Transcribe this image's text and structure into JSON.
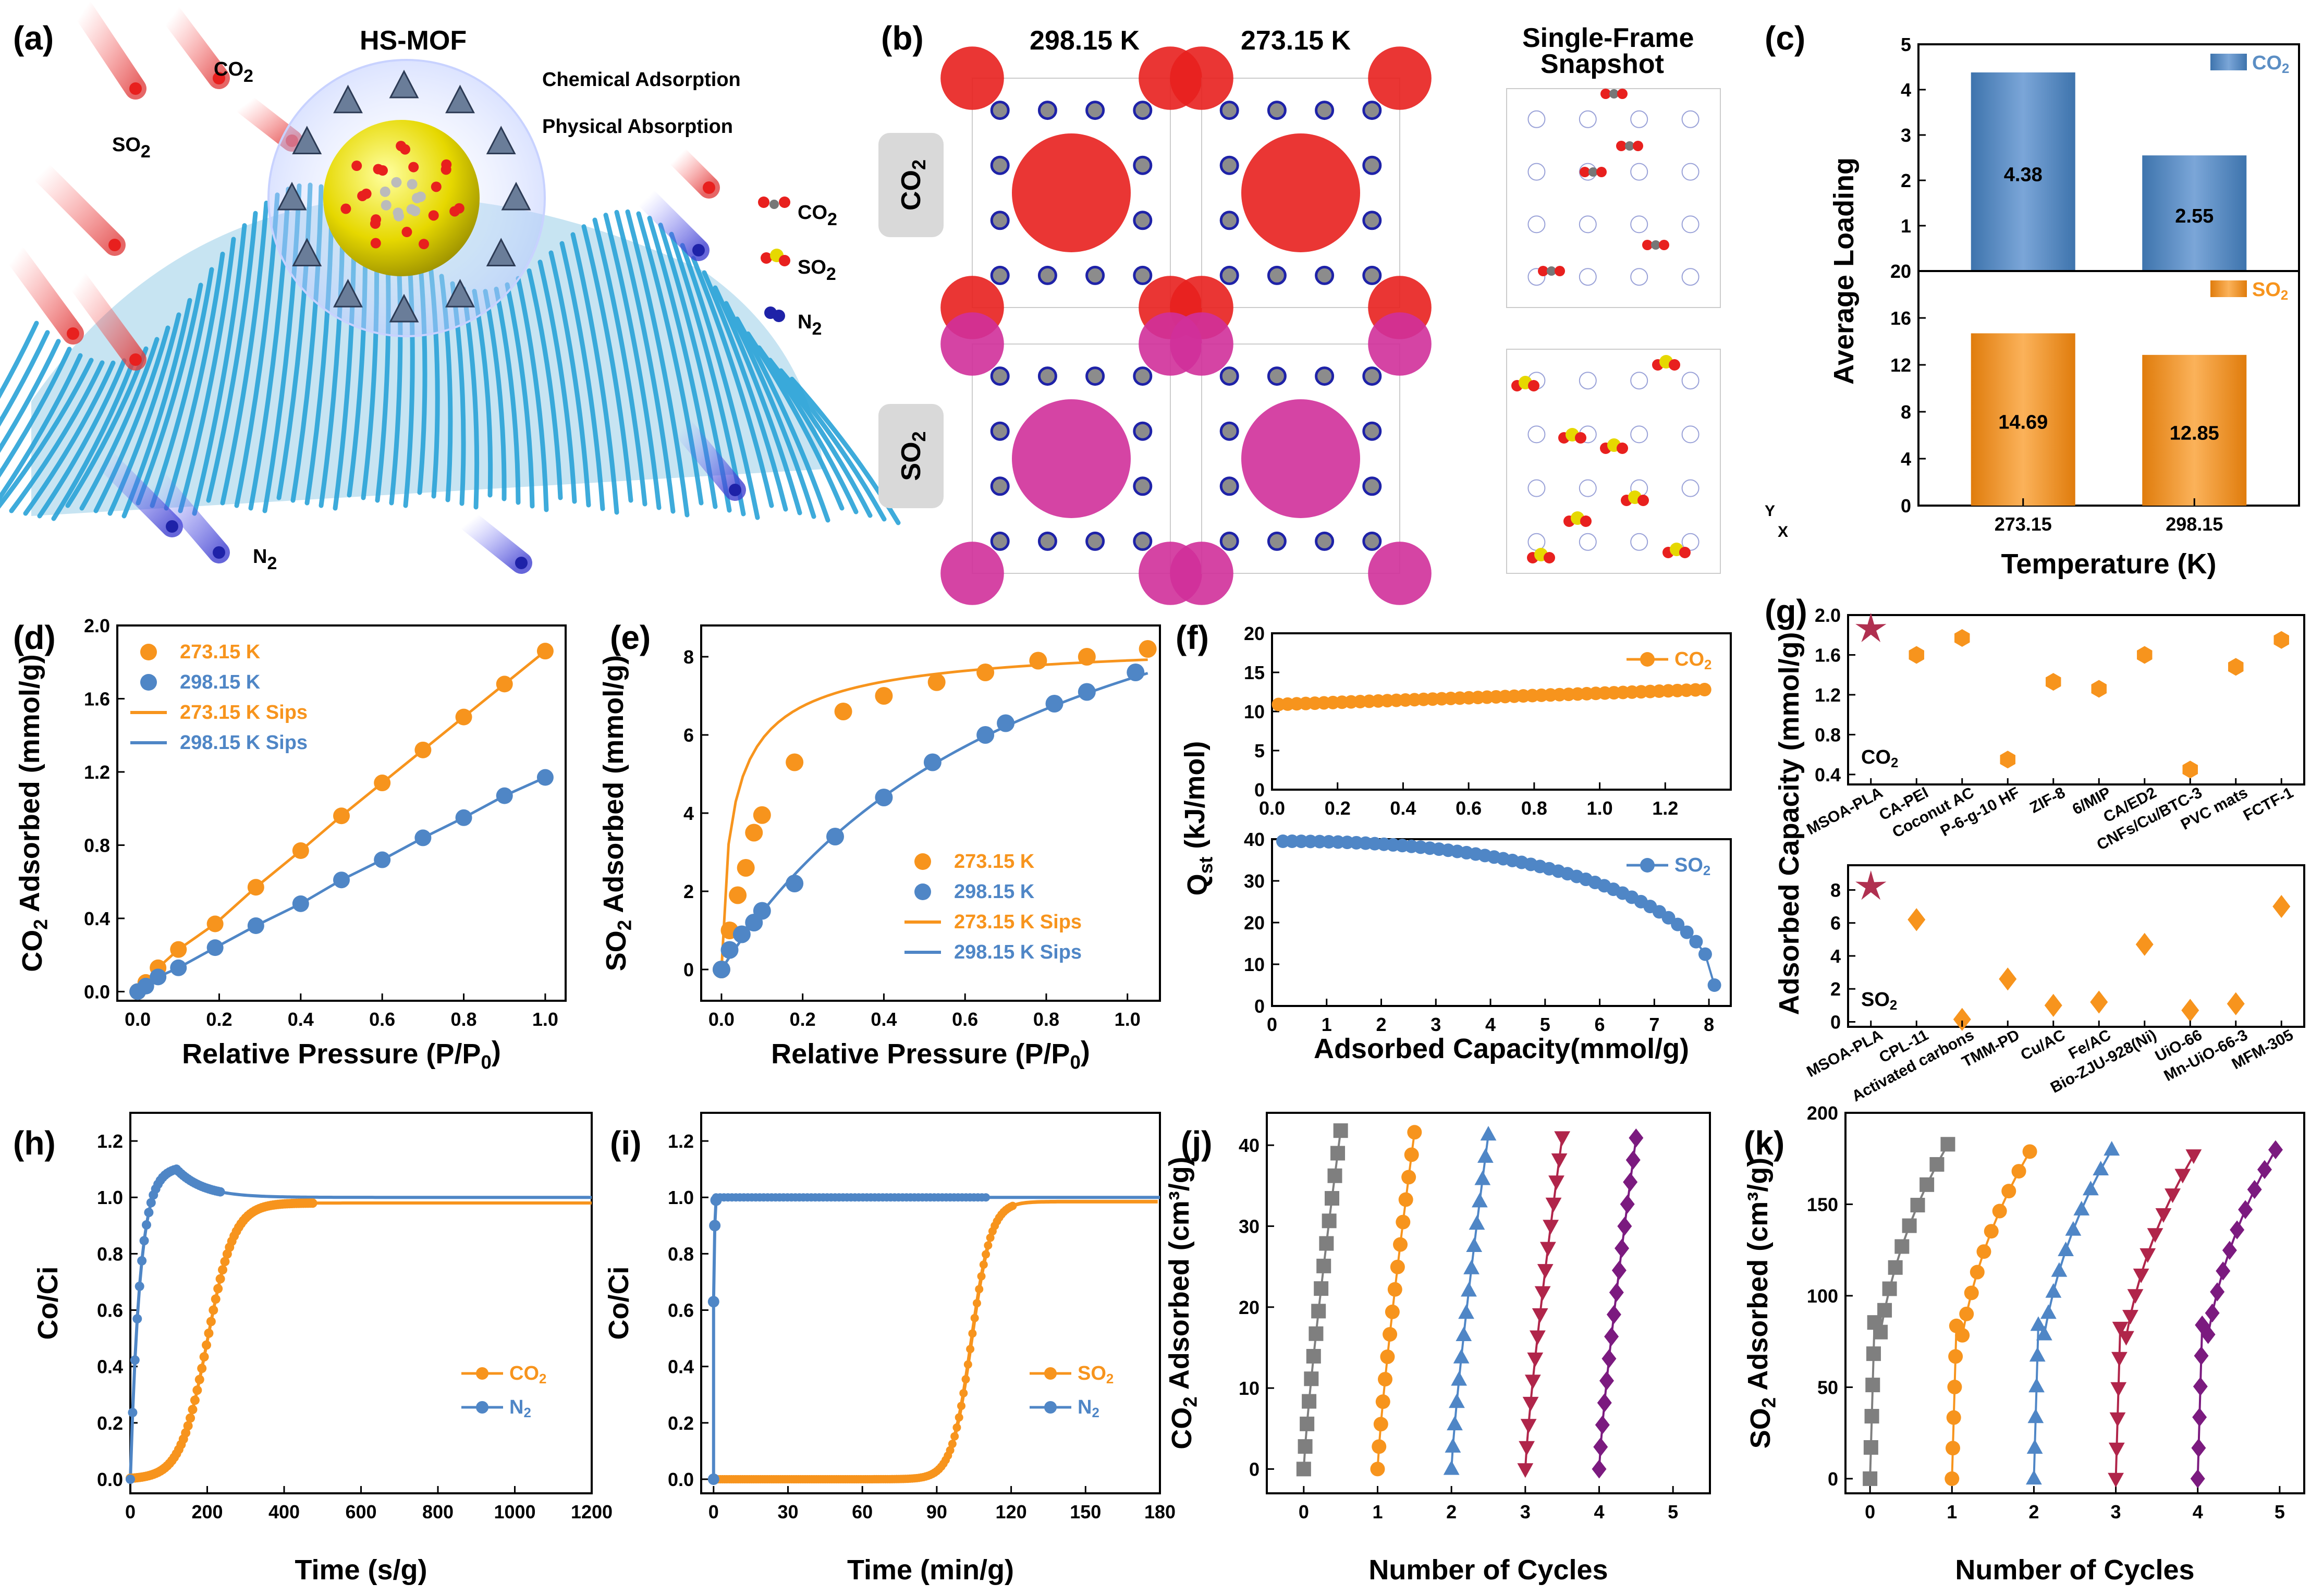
{
  "panel_labels": [
    "(a)",
    "(b)",
    "(c)",
    "(d)",
    "(e)",
    "(f)",
    "(g)",
    "(h)",
    "(i)",
    "(j)",
    "(k)"
  ],
  "colors": {
    "orange": "#f7941d",
    "blue": "#4f86c6",
    "barblue": "#5b8ec4",
    "red": "#e8201e",
    "magenta": "#d0309a",
    "gray": "#7f7f7f",
    "crimson": "#b0254a",
    "purple": "#7b1a7f",
    "star": "#b03050",
    "teal": "#2aa3d8"
  },
  "panel_a": {
    "title": "HS-MOF",
    "line1": "Chemical Adsorption",
    "line2": "Physical Absorption",
    "gas_labels": [
      "CO",
      "SO",
      "N"
    ],
    "gas_subs": [
      "2",
      "2",
      "2"
    ],
    "legend": [
      {
        "text": "CO",
        "sub": "2"
      },
      {
        "text": "SO",
        "sub": "2"
      },
      {
        "text": "N",
        "sub": "2"
      }
    ]
  },
  "panel_b": {
    "col_titles": [
      "298.15 K",
      "273.15 K",
      "Single-Frame"
    ],
    "col_title_line2": "Snapshot",
    "row_labels": [
      {
        "text": "CO",
        "sub": "2"
      },
      {
        "text": "SO",
        "sub": "2"
      }
    ],
    "axis_mini": [
      "Y",
      "X"
    ]
  },
  "chart_data": [
    {
      "id": "c",
      "type": "bar",
      "xlabel": "Temperature (K)",
      "ylabel": "Average Loading",
      "categories": [
        "273.15",
        "298.15"
      ],
      "series": [
        {
          "name": "CO",
          "sub": "2",
          "values": [
            4.38,
            2.55
          ],
          "ylim": [
            0,
            5
          ],
          "ticks": [
            0,
            1,
            2,
            3,
            4,
            5
          ],
          "labels": [
            "4.38",
            "2.55"
          ]
        },
        {
          "name": "SO",
          "sub": "2",
          "values": [
            14.69,
            12.85
          ],
          "ylim": [
            0,
            20
          ],
          "ticks": [
            0,
            4,
            8,
            12,
            16,
            20
          ],
          "labels": [
            "14.69",
            "12.85"
          ]
        }
      ]
    },
    {
      "id": "d",
      "type": "line",
      "xlabel": "Relative Pressure (P/P",
      "xlabel_sub": "0",
      "xlabel_end": ")",
      "ylabel": "CO",
      "ylabel_sub": "2",
      "ylabel_end": " Adsorbed (mmol/g)",
      "xlim": [
        0,
        1.05
      ],
      "ylim": [
        0,
        2.0
      ],
      "xticks": [
        0.0,
        0.2,
        0.4,
        0.6,
        0.8,
        1.0
      ],
      "xtick_labels": [
        "0.0",
        "0.2",
        "0.4",
        "0.6",
        "0.8",
        "1.0"
      ],
      "yticks": [
        0.0,
        0.4,
        0.8,
        1.2,
        1.6,
        2.0
      ],
      "ytick_labels": [
        "0.0",
        "0.4",
        "0.8",
        "1.2",
        "1.6",
        "2.0"
      ],
      "legend": [
        "273.15 K",
        "298.15 K",
        "273.15 K Sips",
        "298.15 K Sips"
      ],
      "series": [
        {
          "name": "273.15 K",
          "x": [
            0.0,
            0.02,
            0.05,
            0.1,
            0.19,
            0.29,
            0.4,
            0.5,
            0.6,
            0.7,
            0.8,
            0.9,
            1.0
          ],
          "y": [
            0.0,
            0.05,
            0.13,
            0.23,
            0.37,
            0.57,
            0.77,
            0.96,
            1.14,
            1.32,
            1.5,
            1.68,
            1.86
          ]
        },
        {
          "name": "298.15 K",
          "x": [
            0.0,
            0.02,
            0.05,
            0.1,
            0.19,
            0.29,
            0.4,
            0.5,
            0.6,
            0.7,
            0.8,
            0.9,
            1.0
          ],
          "y": [
            0.0,
            0.03,
            0.08,
            0.13,
            0.24,
            0.36,
            0.48,
            0.61,
            0.72,
            0.84,
            0.95,
            1.07,
            1.17
          ]
        }
      ]
    },
    {
      "id": "e",
      "type": "line",
      "xlabel": "Relative Pressure (P/P",
      "xlabel_sub": "0",
      "xlabel_end": ")",
      "ylabel": "SO",
      "ylabel_sub": "2",
      "ylabel_end": " Adsorbed (mmol/g)",
      "xlim": [
        -0.05,
        1.08
      ],
      "ylim": [
        -0.8,
        8.8
      ],
      "xticks": [
        0.0,
        0.2,
        0.4,
        0.6,
        0.8,
        1.0
      ],
      "xtick_labels": [
        "0.0",
        "0.2",
        "0.4",
        "0.6",
        "0.8",
        "1.0"
      ],
      "yticks": [
        0,
        2,
        4,
        6,
        8
      ],
      "ytick_labels": [
        "0",
        "2",
        "4",
        "6",
        "8"
      ],
      "legend": [
        "273.15 K",
        "298.15 K",
        "273.15 K Sips",
        "298.15 K Sips"
      ],
      "series": [
        {
          "name": "273.15 K",
          "x": [
            0.0,
            0.02,
            0.04,
            0.06,
            0.08,
            0.1,
            0.18,
            0.3,
            0.4,
            0.53,
            0.65,
            0.78,
            0.9,
            1.05
          ],
          "y": [
            0.0,
            1.0,
            1.9,
            2.6,
            3.5,
            3.95,
            5.3,
            6.6,
            7.0,
            7.35,
            7.6,
            7.9,
            8.0,
            8.2
          ]
        },
        {
          "name": "298.15 K",
          "x": [
            0.0,
            0.02,
            0.05,
            0.08,
            0.1,
            0.18,
            0.28,
            0.4,
            0.52,
            0.65,
            0.7,
            0.82,
            0.9,
            1.02
          ],
          "y": [
            0.0,
            0.5,
            0.9,
            1.2,
            1.5,
            2.2,
            3.4,
            4.4,
            5.3,
            6.0,
            6.3,
            6.8,
            7.1,
            7.6
          ]
        }
      ]
    },
    {
      "id": "f",
      "type": "line",
      "xlabel": "Adsorbed Capacity(mmol/g)",
      "ylabel": "Q",
      "ylabel_sub": "st",
      "ylabel_end": " (kJ/mol)",
      "top": {
        "legend": "CO",
        "legend_sub": "2",
        "xlim": [
          0,
          1.4
        ],
        "ylim": [
          0,
          20
        ],
        "xticks": [
          0.0,
          0.2,
          0.4,
          0.6,
          0.8,
          1.0,
          1.2
        ],
        "xtick_labels": [
          "0.0",
          "0.2",
          "0.4",
          "0.6",
          "0.8",
          "1.0",
          "1.2"
        ],
        "yticks": [
          0,
          5,
          10,
          15,
          20
        ],
        "ytick_labels": [
          "0",
          "5",
          "10",
          "15",
          "20"
        ],
        "x_start": 0.02,
        "x_end": 1.32,
        "y_start": 10.9,
        "y_end": 12.8
      },
      "bottom": {
        "legend": "SO",
        "legend_sub": "2",
        "xlim": [
          0,
          8.4
        ],
        "ylim": [
          0,
          40
        ],
        "xticks": [
          0,
          1,
          2,
          3,
          4,
          5,
          6,
          7,
          8
        ],
        "xtick_labels": [
          "0",
          "1",
          "2",
          "3",
          "4",
          "5",
          "6",
          "7",
          "8"
        ],
        "yticks": [
          0,
          10,
          20,
          30,
          40
        ],
        "ytick_labels": [
          "0",
          "10",
          "20",
          "30",
          "40"
        ],
        "x_start": 0.2,
        "x_end": 8.1,
        "y_start": 39.5,
        "y_end": 5.0
      }
    },
    {
      "id": "g",
      "type": "scatter",
      "ylabel": "Adsorbed Capacity (mmol/g)",
      "top": {
        "label": "CO",
        "label_sub": "2",
        "ylim": [
          0.3,
          2.0
        ],
        "yticks": [
          0.4,
          0.8,
          1.2,
          1.6,
          2.0
        ],
        "ytick_labels": [
          "0.4",
          "0.8",
          "1.2",
          "1.6",
          "2.0"
        ],
        "categories": [
          "MSOA-PLA",
          "CA-PEI",
          "Coconut AC",
          "P-6-g-10 HF",
          "ZIF-8",
          "6/MIP",
          "CA/ED2",
          "CNFs/Cu/BTC-3",
          "PVC mats",
          "FCTF-1"
        ],
        "values": [
          1.86,
          1.6,
          1.77,
          0.55,
          1.33,
          1.26,
          1.6,
          0.45,
          1.48,
          1.75
        ]
      },
      "bottom": {
        "label": "SO",
        "label_sub": "2",
        "ylim": [
          -0.3,
          9.5
        ],
        "yticks": [
          0,
          2,
          4,
          6,
          8
        ],
        "ytick_labels": [
          "0",
          "2",
          "4",
          "6",
          "8"
        ],
        "categories": [
          "MSOA-PLA",
          "CPL-11",
          "Activated carbons",
          "TMM-PD",
          "Cu/AC",
          "Fe/AC",
          "Bio-ZJU-928(Ni)",
          "UiO-66",
          "Mn-UiO-66-3",
          "MFM-305"
        ],
        "values": [
          8.2,
          6.2,
          0.15,
          2.6,
          1.0,
          1.2,
          4.7,
          0.7,
          1.1,
          7.0
        ]
      }
    },
    {
      "id": "h",
      "type": "line",
      "xlabel": "Time (s/g)",
      "ylabel": "Co/Ci",
      "xlim": [
        0,
        1200
      ],
      "ylim": [
        -0.05,
        1.3
      ],
      "xticks": [
        0,
        200,
        400,
        600,
        800,
        1000,
        1200
      ],
      "xtick_labels": [
        "0",
        "200",
        "400",
        "600",
        "800",
        "1000",
        "1200"
      ],
      "yticks": [
        0.0,
        0.2,
        0.4,
        0.6,
        0.8,
        1.0,
        1.2
      ],
      "ytick_labels": [
        "0.0",
        "0.2",
        "0.4",
        "0.6",
        "0.8",
        "1.0",
        "1.2"
      ],
      "legend": [
        {
          "text": "CO",
          "sub": "2"
        },
        {
          "text": "N",
          "sub": "2"
        }
      ]
    },
    {
      "id": "i",
      "type": "line",
      "xlabel": "Time (min/g)",
      "ylabel": "Co/Ci",
      "xlim": [
        -5,
        180
      ],
      "ylim": [
        -0.05,
        1.3
      ],
      "xticks": [
        0,
        30,
        60,
        90,
        120,
        150,
        180
      ],
      "xtick_labels": [
        "0",
        "30",
        "60",
        "90",
        "120",
        "150",
        "180"
      ],
      "yticks": [
        0.0,
        0.2,
        0.4,
        0.6,
        0.8,
        1.0,
        1.2
      ],
      "ytick_labels": [
        "0.0",
        "0.2",
        "0.4",
        "0.6",
        "0.8",
        "1.0",
        "1.2"
      ],
      "legend": [
        {
          "text": "SO",
          "sub": "2"
        },
        {
          "text": "N",
          "sub": "2"
        }
      ]
    },
    {
      "id": "j",
      "type": "line",
      "xlabel": "Number of Cycles",
      "ylabel": "CO",
      "ylabel_sub": "2",
      "ylabel_end": " Adsorbed (cm³/g)",
      "xlim": [
        -0.5,
        5.5
      ],
      "ylim": [
        -3,
        44
      ],
      "xticks": [
        0,
        1,
        2,
        3,
        4,
        5
      ],
      "xtick_labels": [
        "0",
        "1",
        "2",
        "3",
        "4",
        "5"
      ],
      "yticks": [
        0,
        10,
        20,
        30,
        40
      ],
      "ytick_labels": [
        "0",
        "10",
        "20",
        "30",
        "40"
      ],
      "cycle_top": [
        41.8,
        41.6,
        41.3,
        41.0,
        40.9
      ],
      "cycle_width": 0.5
    },
    {
      "id": "k",
      "type": "line",
      "xlabel": "Number of Cycles",
      "ylabel": "SO",
      "ylabel_sub": "2",
      "ylabel_end": " Adsorbed (cm³/g)",
      "xlim": [
        -0.3,
        5.3
      ],
      "ylim": [
        -8,
        200
      ],
      "xticks": [
        0,
        1,
        2,
        3,
        4,
        5
      ],
      "xtick_labels": [
        "0",
        "1",
        "2",
        "3",
        "4",
        "5"
      ],
      "yticks": [
        0,
        50,
        100,
        150,
        200
      ],
      "ytick_labels": [
        "0",
        "50",
        "100",
        "150",
        "200"
      ],
      "cycle_top": [
        183,
        179,
        180,
        177,
        180
      ],
      "cycle_width": 0.95
    }
  ]
}
